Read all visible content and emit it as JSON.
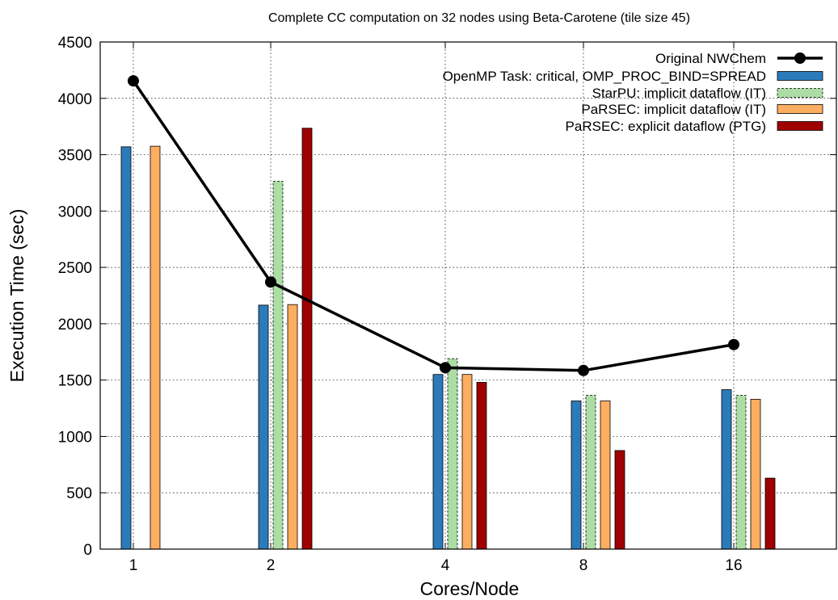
{
  "chart_data": {
    "type": "bar",
    "title": "Complete CC computation on 32 nodes using Beta-Carotene (tile size 45)",
    "xlabel": "Cores/Node",
    "ylabel": "Execution Time (sec)",
    "ylim": [
      0,
      4500
    ],
    "yticks": [
      0,
      500,
      1000,
      1500,
      2000,
      2500,
      3000,
      3500,
      4000,
      4500
    ],
    "categories": [
      "1",
      "2",
      "4",
      "8",
      "16"
    ],
    "grid": true,
    "legend_position": "top-right",
    "line_series": {
      "name": "Original NWChem",
      "values": [
        4155,
        2370,
        1610,
        1585,
        1815
      ],
      "color": "#000000"
    },
    "series": [
      {
        "name": "OpenMP Task: critical, OMP_PROC_BIND=SPREAD",
        "values": [
          3570,
          2165,
          1550,
          1315,
          1415
        ],
        "color": "#2b7bba",
        "pattern": "solid"
      },
      {
        "name": "StarPU: implicit dataflow (IT)",
        "values": [
          null,
          3265,
          1690,
          1365,
          1365
        ],
        "color": "#abdda4",
        "pattern": "dashed"
      },
      {
        "name": "PaRSEC: implicit dataflow (IT)",
        "values": [
          3575,
          2170,
          1550,
          1315,
          1330
        ],
        "color": "#fdae61",
        "pattern": "solid"
      },
      {
        "name": "PaRSEC: explicit dataflow (PTG)",
        "values": [
          null,
          3735,
          1480,
          875,
          630
        ],
        "color": "#9e0100",
        "pattern": "solid"
      }
    ]
  }
}
